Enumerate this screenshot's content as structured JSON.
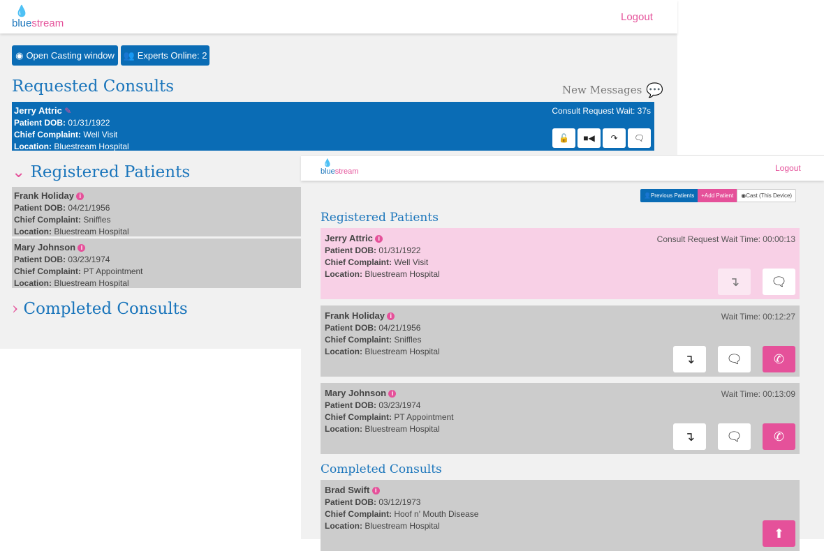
{
  "back": {
    "logo": "bluestream",
    "logout": "Logout",
    "buttons": {
      "cast": "Open Casting window",
      "experts": "Experts Online: 2"
    },
    "requested_title": "Requested Consults",
    "new_messages": "New Messages",
    "requested": {
      "name": "Jerry Attric",
      "dob_label": "Patient DOB:",
      "dob": "01/31/1922",
      "cc_label": "Chief Complaint:",
      "cc": "Well Visit",
      "loc_label": "Location:",
      "loc": "Bluestream Hospital",
      "wait": "Consult Request Wait: 37s"
    },
    "registered_title": "Registered Patients",
    "patients": [
      {
        "name": "Frank Holiday",
        "dob": "04/21/1956",
        "cc": "Sniffles",
        "loc": "Bluestream Hospital"
      },
      {
        "name": "Mary Johnson",
        "dob": "03/23/1974",
        "cc": "PT Appointment",
        "loc": "Bluestream Hospital"
      }
    ],
    "completed_title": "Completed Consults"
  },
  "front": {
    "logo": "bluestream",
    "logout": "Logout",
    "toolbar": {
      "previous": "Previous Patients",
      "add": "Add Patient",
      "cast": "Cast (This Device)"
    },
    "registered_title": "Registered Patients",
    "labels": {
      "dob": "Patient DOB:",
      "cc": "Chief Complaint:",
      "loc": "Location:"
    },
    "patients": [
      {
        "name": "Jerry Attric",
        "dob": "01/31/1922",
        "cc": "Well Visit",
        "loc": "Bluestream Hospital",
        "wait": "Consult Request Wait Time: 00:00:13"
      },
      {
        "name": "Frank Holiday",
        "dob": "04/21/1956",
        "cc": "Sniffles",
        "loc": "Bluestream Hospital",
        "wait": "Wait Time: 00:12:27"
      },
      {
        "name": "Mary Johnson",
        "dob": "03/23/1974",
        "cc": "PT Appointment",
        "loc": "Bluestream Hospital",
        "wait": "Wait Time: 00:13:09"
      }
    ],
    "completed_title": "Completed Consults",
    "completed": [
      {
        "name": "Brad Swift",
        "dob": "03/12/1973",
        "cc": "Hoof n' Mouth Disease",
        "loc": "Bluestream Hospital"
      }
    ]
  },
  "colors": {
    "blue": "#0a6cb5",
    "pink": "#e5519a",
    "gray_card": "#cccccc",
    "pink_card": "#f8d0e6"
  }
}
